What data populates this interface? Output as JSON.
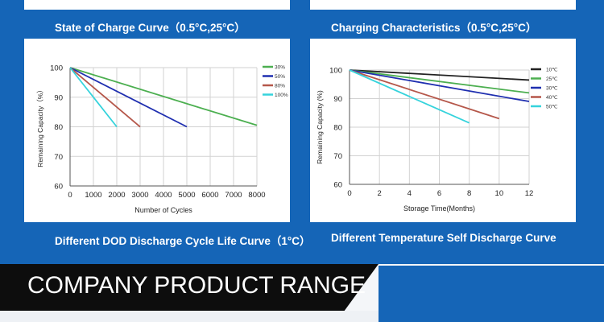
{
  "captions": {
    "top_left": "State of Charge Curve（0.5°C,25°C）",
    "top_right": "Charging  Characteristics（0.5°C,25°C）",
    "bottom_left": "Different DOD Discharge  Cycle Life Curve（1°C）",
    "bottom_right": "Different Temperature Self Discharge Curve"
  },
  "banner": {
    "title": "COMPANY PRODUCT RANGE"
  },
  "colors": {
    "background": "#1565b7",
    "banner": "#0d0d0d"
  },
  "chart_data": [
    {
      "type": "line",
      "title": "",
      "xlabel": "Number of Cycles",
      "ylabel": "Remaining Capacity（%）",
      "xlim": [
        0,
        8000
      ],
      "ylim": [
        60,
        100
      ],
      "xticks": [
        0,
        1000,
        2000,
        3000,
        4000,
        5000,
        6000,
        7000,
        8000
      ],
      "yticks": [
        60,
        70,
        80,
        90,
        100
      ],
      "grid": true,
      "legend_position": "top-right",
      "series": [
        {
          "name": "30%",
          "color": "#4caf50",
          "points": [
            [
              0,
              100
            ],
            [
              8000,
              80.5
            ]
          ]
        },
        {
          "name": "50%",
          "color": "#1f2fb0",
          "points": [
            [
              0,
              100
            ],
            [
              5000,
              80
            ]
          ]
        },
        {
          "name": "80%",
          "color": "#b5574a",
          "points": [
            [
              0,
              100
            ],
            [
              3000,
              80
            ]
          ]
        },
        {
          "name": "100%",
          "color": "#35d3dc",
          "points": [
            [
              0,
              100
            ],
            [
              2000,
              80
            ]
          ]
        }
      ]
    },
    {
      "type": "line",
      "title": "",
      "xlabel": "Storage Time(Months)",
      "ylabel": "Remaining Capacity (%)",
      "xlim": [
        0,
        12
      ],
      "ylim": [
        60,
        100
      ],
      "xticks": [
        0,
        2,
        4,
        6,
        8,
        10,
        12
      ],
      "yticks": [
        60,
        70,
        80,
        90,
        100
      ],
      "grid": true,
      "legend_position": "top-right",
      "series": [
        {
          "name": "10℃",
          "color": "#222222",
          "points": [
            [
              0,
              100
            ],
            [
              12,
              96.5
            ]
          ]
        },
        {
          "name": "25℃",
          "color": "#4caf50",
          "points": [
            [
              0,
              100
            ],
            [
              12,
              92
            ]
          ]
        },
        {
          "name": "30℃",
          "color": "#1f2fb0",
          "points": [
            [
              0,
              100
            ],
            [
              12,
              89
            ]
          ]
        },
        {
          "name": "40℃",
          "color": "#b5574a",
          "points": [
            [
              0,
              100
            ],
            [
              10,
              83
            ]
          ]
        },
        {
          "name": "50℃",
          "color": "#35d3dc",
          "points": [
            [
              0,
              100
            ],
            [
              8,
              81.5
            ]
          ]
        }
      ]
    }
  ]
}
